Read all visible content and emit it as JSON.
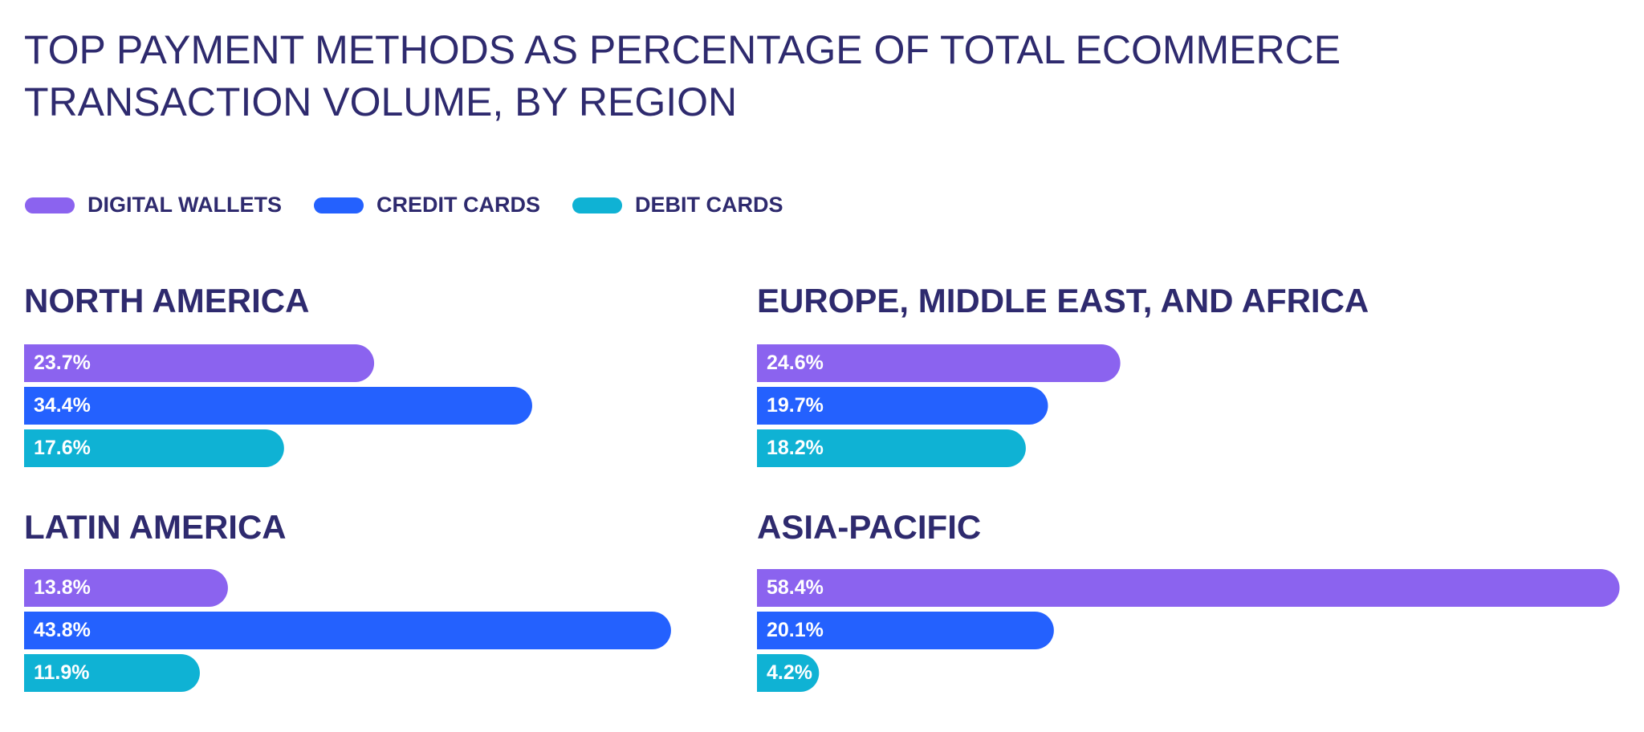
{
  "chart_data": {
    "type": "bar",
    "title": [
      "TOP PAYMENT METHODS AS PERCENTAGE OF TOTAL ECOMMERCE",
      "TRANSACTION VOLUME, BY REGION"
    ],
    "categories": [
      "NORTH AMERICA",
      "EUROPE, MIDDLE EAST, AND AFRICA",
      "LATIN AMERICA",
      "ASIA-PACIFIC"
    ],
    "series": [
      {
        "name": "DIGITAL WALLETS",
        "color": "#8b63ef",
        "values": [
          23.7,
          24.6,
          13.8,
          58.4
        ],
        "value_labels": [
          "23.7%",
          "24.6%",
          "13.8%",
          "58.4%"
        ]
      },
      {
        "name": "CREDIT CARDS",
        "color": "#2461fe",
        "values": [
          34.4,
          19.7,
          43.8,
          20.1
        ],
        "value_labels": [
          "34.4%",
          "19.7%",
          "43.8%",
          "20.1%"
        ]
      },
      {
        "name": "DEBIT CARDS",
        "color": "#0fb2d4",
        "values": [
          17.6,
          18.2,
          11.9,
          4.2
        ],
        "value_labels": [
          "17.6%",
          "18.2%",
          "11.9%",
          "4.2%"
        ]
      }
    ]
  }
}
